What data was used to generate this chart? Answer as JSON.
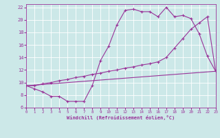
{
  "bg_color": "#cce8e8",
  "line_color": "#993399",
  "xlim": [
    0,
    23
  ],
  "ylim": [
    6,
    22.5
  ],
  "xticks": [
    0,
    1,
    2,
    3,
    4,
    5,
    6,
    7,
    8,
    9,
    10,
    11,
    12,
    13,
    14,
    15,
    16,
    17,
    18,
    19,
    20,
    21,
    22,
    23
  ],
  "yticks": [
    6,
    8,
    10,
    12,
    14,
    16,
    18,
    20,
    22
  ],
  "xlabel": "Windchill (Refroidissement éolien,°C)",
  "line1_x": [
    0,
    1,
    2,
    3,
    4,
    5,
    6,
    7,
    8,
    9,
    10,
    11,
    12,
    13,
    14,
    15,
    16,
    17,
    18,
    19,
    20,
    21,
    22,
    23
  ],
  "line1_y": [
    9.5,
    9.0,
    8.5,
    7.8,
    7.8,
    7.0,
    7.0,
    7.0,
    9.5,
    13.5,
    15.8,
    19.2,
    21.5,
    21.7,
    21.3,
    21.3,
    20.5,
    22.0,
    20.5,
    20.7,
    20.2,
    17.8,
    14.2,
    11.8
  ],
  "line2_x": [
    0,
    1,
    2,
    3,
    4,
    5,
    6,
    7,
    8,
    9,
    10,
    11,
    12,
    13,
    14,
    15,
    16,
    17,
    18,
    19,
    20,
    21,
    22,
    23
  ],
  "line2_y": [
    9.5,
    9.5,
    9.8,
    10.0,
    10.3,
    10.5,
    10.8,
    11.0,
    11.3,
    11.5,
    11.8,
    12.0,
    12.3,
    12.5,
    12.8,
    13.0,
    13.3,
    14.0,
    15.5,
    17.0,
    18.5,
    19.5,
    20.5,
    11.8
  ],
  "line3_x": [
    0,
    23
  ],
  "line3_y": [
    9.5,
    11.8
  ]
}
